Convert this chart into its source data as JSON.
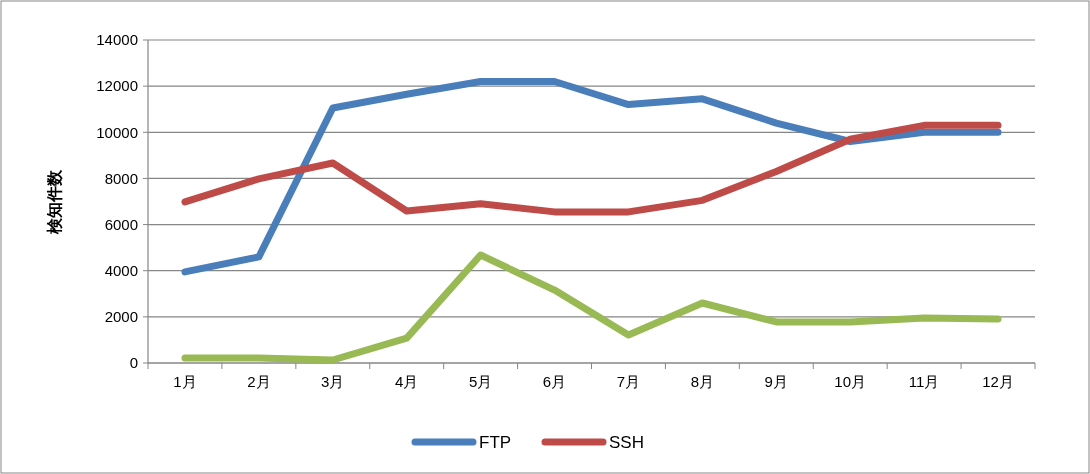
{
  "chart_data": {
    "type": "line",
    "ylabel": "検知件数",
    "categories": [
      "1月",
      "2月",
      "3月",
      "4月",
      "5月",
      "6月",
      "7月",
      "8月",
      "9月",
      "10月",
      "11月",
      "12月"
    ],
    "series": [
      {
        "name": "FTP",
        "color": "#4a7ebb",
        "values": [
          3950,
          4600,
          11050,
          11650,
          12200,
          12200,
          11200,
          11450,
          10400,
          9600,
          10000,
          10000
        ]
      },
      {
        "name": "SSH",
        "color": "#be4b48",
        "values": [
          6980,
          7980,
          8670,
          6590,
          6900,
          6550,
          6550,
          7050,
          8300,
          9700,
          10300,
          10300
        ]
      },
      {
        "color": "#98b954",
        "values": [
          220,
          220,
          130,
          1080,
          4680,
          3160,
          1210,
          2600,
          1780,
          1780,
          1950,
          1910
        ]
      }
    ],
    "ylim": [
      0,
      14000
    ],
    "yticks": [
      0,
      2000,
      4000,
      6000,
      8000,
      10000,
      12000,
      14000
    ],
    "grid": "y",
    "legend": "bottom",
    "marker": "none",
    "line_style": "solid"
  }
}
